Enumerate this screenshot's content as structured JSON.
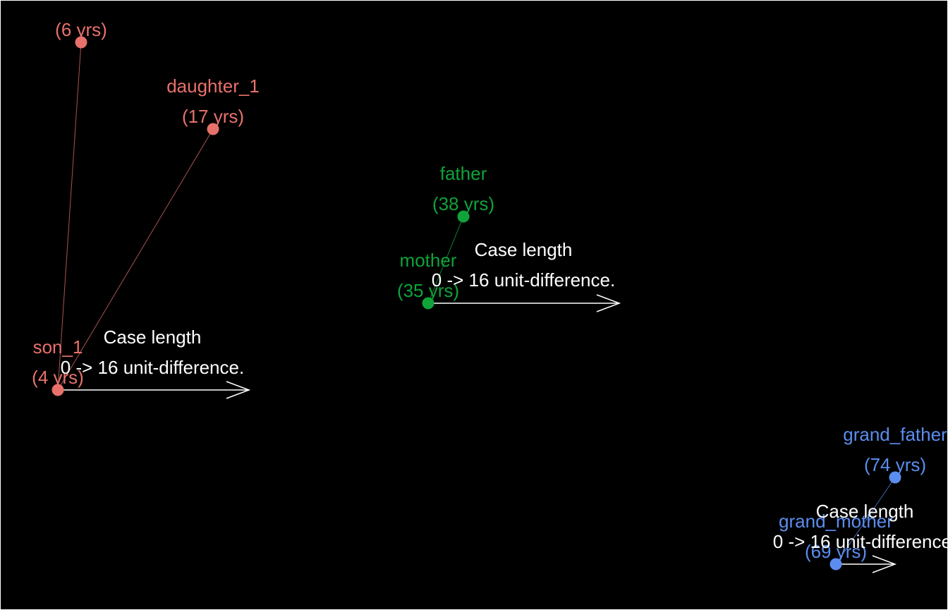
{
  "legend": {
    "case_title": "Case length",
    "case_text": "0 -> 16 unit-difference."
  },
  "groups": [
    {
      "color": "#E8716B",
      "link_color": "#A9544F",
      "members": [
        {
          "name": "son_1",
          "age": "(4 yrs)"
        },
        {
          "name": "",
          "age": "(6 yrs)"
        },
        {
          "name": "daughter_1",
          "age": "(17 yrs)"
        }
      ]
    },
    {
      "color": "#0FA33A",
      "link_color": "#0C7A2C",
      "members": [
        {
          "name": "mother",
          "age": "(35 yrs)"
        },
        {
          "name": "father",
          "age": "(38 yrs)"
        }
      ]
    },
    {
      "color": "#5B8DEF",
      "link_color": "#3D64AE",
      "members": [
        {
          "name": "grand_mother",
          "age": "(69 yrs)"
        },
        {
          "name": "grand_father",
          "age": "(74 yrs)"
        }
      ]
    }
  ]
}
